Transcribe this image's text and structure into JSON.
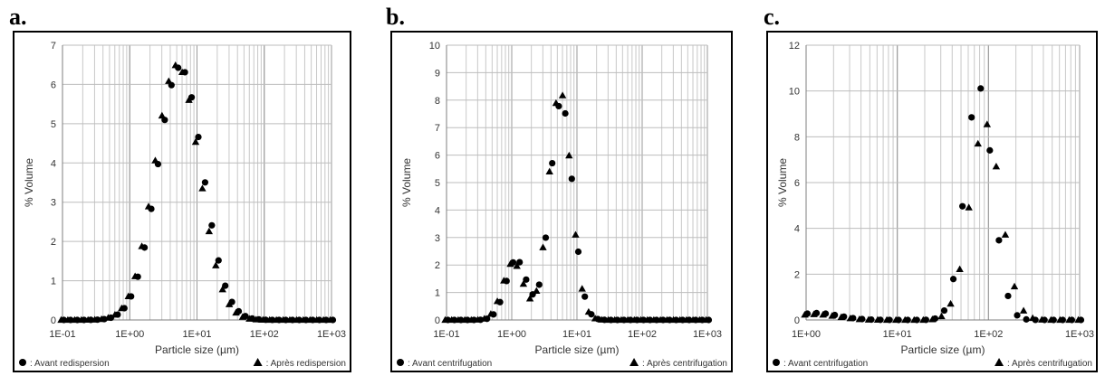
{
  "panels": [
    {
      "letter": "a."
    },
    {
      "letter": "b."
    },
    {
      "letter": "c."
    }
  ],
  "chart_data": [
    {
      "type": "scatter",
      "xscale": "log",
      "xlim": [
        0.1,
        1000
      ],
      "ylim": [
        0,
        7
      ],
      "yticks": [
        0,
        1,
        2,
        3,
        4,
        5,
        6,
        7
      ],
      "xtick_labels": [
        "1E-01",
        "1E+00",
        "1E+01",
        "1E+02",
        "1E+03"
      ],
      "ylabel": "% Volume",
      "xlabel": "Particle size (µm)",
      "grid": true,
      "series": [
        {
          "name": ": Avant redispersion",
          "marker": "circle",
          "mu": 0.73,
          "sigma": 0.335,
          "peak": 6.45,
          "xmin": 0.1,
          "xmax": 1000
        },
        {
          "name": ": Après redispersion",
          "marker": "triangle",
          "mu": 0.72,
          "sigma": 0.33,
          "peak": 6.5,
          "xmin": 0.1,
          "xmax": 1000
        }
      ]
    },
    {
      "type": "scatter",
      "xscale": "log",
      "xlim": [
        0.1,
        1000
      ],
      "ylim": [
        0,
        10
      ],
      "yticks": [
        0,
        1,
        2,
        3,
        4,
        5,
        6,
        7,
        8,
        9,
        10
      ],
      "xtick_labels": [
        "1E-01",
        "1E+00",
        "1E+01",
        "1E+02",
        "1E+03"
      ],
      "ylabel": "% Volume",
      "xlabel": "Particle size (µm)",
      "grid": true,
      "series": [
        {
          "name": ": Avant centrifugation",
          "marker": "circle",
          "mu": 0.74,
          "sigma": 0.17,
          "peak": 8.0,
          "mu2": 0.05,
          "sigma2": 0.16,
          "peak2": 2.2,
          "xmin": 0.1,
          "xmax": 1000
        },
        {
          "name": ": Après centrifugation",
          "marker": "triangle",
          "mu": 0.76,
          "sigma": 0.17,
          "peak": 8.4,
          "mu2": 0.04,
          "sigma2": 0.16,
          "peak2": 2.1,
          "xmin": 0.1,
          "xmax": 1000
        }
      ]
    },
    {
      "type": "scatter",
      "xscale": "log",
      "xlim": [
        1,
        1000
      ],
      "ylim": [
        0,
        12
      ],
      "yticks": [
        0,
        2,
        4,
        6,
        8,
        10,
        12
      ],
      "xtick_labels": [
        "1E+00",
        "1E+01",
        "1E+02",
        "1E+03"
      ],
      "ylabel": "% Volume",
      "xlabel": "Particle size (µm)",
      "grid": true,
      "series": [
        {
          "name": ": Avant centrifugation",
          "marker": "circle",
          "mu": 1.88,
          "sigma": 0.15,
          "peak": 10.2,
          "base": 0.3,
          "xmin": 1,
          "xmax": 1000
        },
        {
          "name": ": Après centrifugation",
          "marker": "triangle",
          "mu": 1.98,
          "sigma": 0.17,
          "peak": 8.6,
          "base": 0.25,
          "xmin": 1,
          "xmax": 1000
        }
      ]
    }
  ]
}
